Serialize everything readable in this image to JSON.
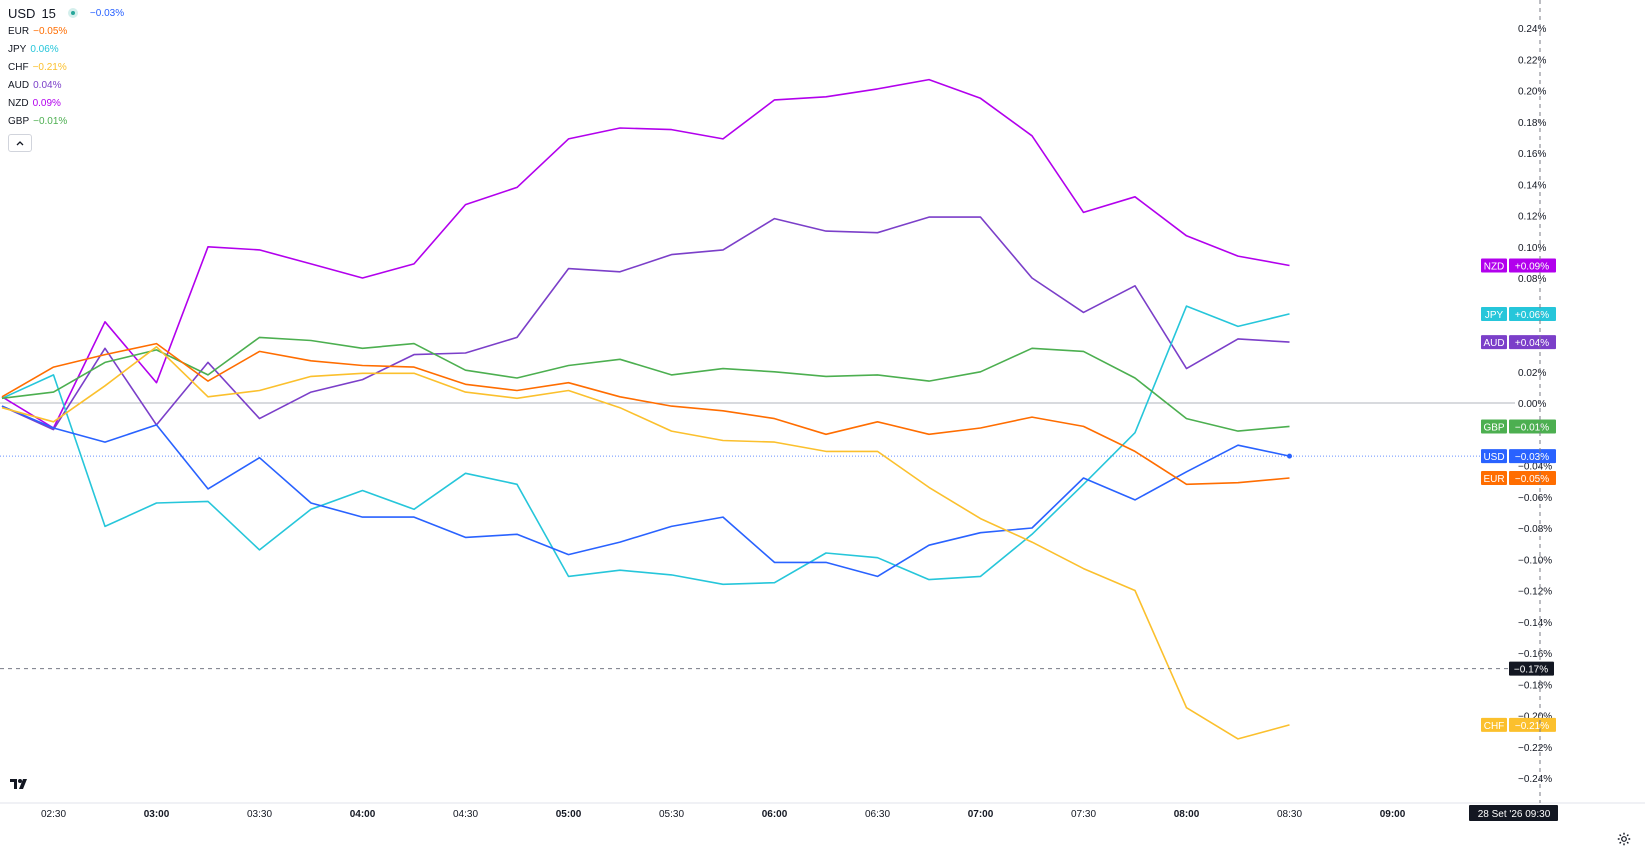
{
  "header": {
    "symbol": "USD",
    "interval": "15",
    "change": "−0.03%",
    "change_color": "#2962ff"
  },
  "legend": [
    {
      "code": "EUR",
      "change": "−0.05%",
      "color": "#ff6d00"
    },
    {
      "code": "JPY",
      "change": "0.06%",
      "color": "#26c6da"
    },
    {
      "code": "CHF",
      "change": "−0.21%",
      "color": "#fbc02d"
    },
    {
      "code": "AUD",
      "change": "0.04%",
      "color": "#7b3fc9"
    },
    {
      "code": "NZD",
      "change": "0.09%",
      "color": "#b200ed"
    },
    {
      "code": "GBP",
      "change": "−0.01%",
      "color": "#4caf50"
    }
  ],
  "collapse_icon": "chevron-up-icon",
  "logo_text": "TV",
  "settings_icon": "gear-icon",
  "crosshair": {
    "price_label": "−0.17%",
    "time_label": "28 Set '26  09:30",
    "price": -0.17,
    "time_index": 30
  },
  "chart_data": {
    "type": "line",
    "ylabel": "",
    "xlabel": "",
    "ylim": [
      -0.25,
      0.25
    ],
    "x": [
      "02:15",
      "02:30",
      "02:45",
      "03:00",
      "03:15",
      "03:30",
      "03:45",
      "04:00",
      "04:15",
      "04:30",
      "04:45",
      "05:00",
      "05:15",
      "05:30",
      "05:45",
      "06:00",
      "06:15",
      "06:30",
      "06:45",
      "07:00",
      "07:15",
      "07:30",
      "07:45",
      "08:00",
      "08:15",
      "08:30"
    ],
    "x_ticks": [
      {
        "label": "02:30",
        "index": 1,
        "bold": false
      },
      {
        "label": "03:00",
        "index": 3,
        "bold": true
      },
      {
        "label": "03:30",
        "index": 5,
        "bold": false
      },
      {
        "label": "04:00",
        "index": 7,
        "bold": true
      },
      {
        "label": "04:30",
        "index": 9,
        "bold": false
      },
      {
        "label": "05:00",
        "index": 11,
        "bold": true
      },
      {
        "label": "05:30",
        "index": 13,
        "bold": false
      },
      {
        "label": "06:00",
        "index": 15,
        "bold": true
      },
      {
        "label": "06:30",
        "index": 17,
        "bold": false
      },
      {
        "label": "07:00",
        "index": 19,
        "bold": true
      },
      {
        "label": "07:30",
        "index": 21,
        "bold": false
      },
      {
        "label": "08:00",
        "index": 23,
        "bold": true
      },
      {
        "label": "08:30",
        "index": 25,
        "bold": false
      },
      {
        "label": "09:00",
        "index": 27,
        "bold": true
      }
    ],
    "y_ticks": [
      {
        "label": "0.24%",
        "value": 0.24
      },
      {
        "label": "0.22%",
        "value": 0.22
      },
      {
        "label": "0.20%",
        "value": 0.2
      },
      {
        "label": "0.18%",
        "value": 0.18
      },
      {
        "label": "0.16%",
        "value": 0.16
      },
      {
        "label": "0.14%",
        "value": 0.14
      },
      {
        "label": "0.12%",
        "value": 0.12
      },
      {
        "label": "0.10%",
        "value": 0.1
      },
      {
        "label": "0.08%",
        "value": 0.08
      },
      {
        "label": "0.02%",
        "value": 0.02
      },
      {
        "label": "0.00%",
        "value": 0.0
      },
      {
        "label": "−0.04%",
        "value": -0.04
      },
      {
        "label": "−0.06%",
        "value": -0.06
      },
      {
        "label": "−0.08%",
        "value": -0.08
      },
      {
        "label": "−0.10%",
        "value": -0.1
      },
      {
        "label": "−0.12%",
        "value": -0.12
      },
      {
        "label": "−0.14%",
        "value": -0.14
      },
      {
        "label": "−0.16%",
        "value": -0.16
      },
      {
        "label": "−0.18%",
        "value": -0.18
      },
      {
        "label": "−0.20%",
        "value": -0.2
      },
      {
        "label": "−0.22%",
        "value": -0.22
      },
      {
        "label": "−0.24%",
        "value": -0.24
      }
    ],
    "series": [
      {
        "name": "NZD",
        "color": "#b200ed",
        "badge": "+0.09%",
        "last": 0.088,
        "values": [
          0.004,
          -0.016,
          0.052,
          0.013,
          0.1,
          0.098,
          0.089,
          0.08,
          0.089,
          0.127,
          0.138,
          0.169,
          0.176,
          0.175,
          0.169,
          0.194,
          0.196,
          0.201,
          0.207,
          0.195,
          0.171,
          0.122,
          0.132,
          0.107,
          0.094,
          0.088
        ]
      },
      {
        "name": "AUD",
        "color": "#7b3fc9",
        "badge": "+0.04%",
        "last": 0.039,
        "values": [
          -0.002,
          -0.017,
          0.035,
          -0.014,
          0.026,
          -0.01,
          0.007,
          0.015,
          0.031,
          0.032,
          0.042,
          0.086,
          0.084,
          0.095,
          0.098,
          0.118,
          0.11,
          0.109,
          0.119,
          0.119,
          0.08,
          0.058,
          0.075,
          0.022,
          0.041,
          0.039
        ]
      },
      {
        "name": "JPY",
        "color": "#26c6da",
        "badge": "+0.06%",
        "last": 0.057,
        "values": [
          0.003,
          0.018,
          -0.079,
          -0.064,
          -0.063,
          -0.094,
          -0.068,
          -0.056,
          -0.068,
          -0.045,
          -0.052,
          -0.111,
          -0.107,
          -0.11,
          -0.116,
          -0.115,
          -0.096,
          -0.099,
          -0.113,
          -0.111,
          -0.084,
          -0.052,
          -0.019,
          0.062,
          0.049,
          0.057
        ]
      },
      {
        "name": "GBP",
        "color": "#4caf50",
        "badge": "−0.01%",
        "last": -0.015,
        "values": [
          0.003,
          0.007,
          0.026,
          0.034,
          0.018,
          0.042,
          0.04,
          0.035,
          0.038,
          0.021,
          0.016,
          0.024,
          0.028,
          0.018,
          0.022,
          0.02,
          0.017,
          0.018,
          0.014,
          0.02,
          0.035,
          0.033,
          0.016,
          -0.01,
          -0.018,
          -0.015
        ]
      },
      {
        "name": "USD",
        "color": "#2962ff",
        "badge": "−0.03%",
        "last": -0.034,
        "values": [
          -0.002,
          -0.016,
          -0.025,
          -0.014,
          -0.055,
          -0.035,
          -0.064,
          -0.073,
          -0.073,
          -0.086,
          -0.084,
          -0.097,
          -0.089,
          -0.079,
          -0.073,
          -0.102,
          -0.102,
          -0.111,
          -0.091,
          -0.083,
          -0.08,
          -0.048,
          -0.062,
          -0.044,
          -0.027,
          -0.034
        ]
      },
      {
        "name": "EUR",
        "color": "#ff6d00",
        "badge": "−0.05%",
        "last": -0.048,
        "values": [
          0.004,
          0.023,
          0.031,
          0.038,
          0.014,
          0.033,
          0.027,
          0.024,
          0.023,
          0.012,
          0.008,
          0.013,
          0.004,
          -0.002,
          -0.005,
          -0.01,
          -0.02,
          -0.012,
          -0.02,
          -0.016,
          -0.009,
          -0.015,
          -0.031,
          -0.052,
          -0.051,
          -0.048
        ]
      },
      {
        "name": "CHF",
        "color": "#fbc02d",
        "badge": "−0.21%",
        "last": -0.206,
        "values": [
          -0.003,
          -0.012,
          0.011,
          0.036,
          0.004,
          0.008,
          0.017,
          0.019,
          0.019,
          0.007,
          0.003,
          0.008,
          -0.003,
          -0.018,
          -0.024,
          -0.025,
          -0.031,
          -0.031,
          -0.054,
          -0.074,
          -0.089,
          -0.106,
          -0.12,
          -0.195,
          -0.215,
          -0.206
        ]
      }
    ]
  }
}
